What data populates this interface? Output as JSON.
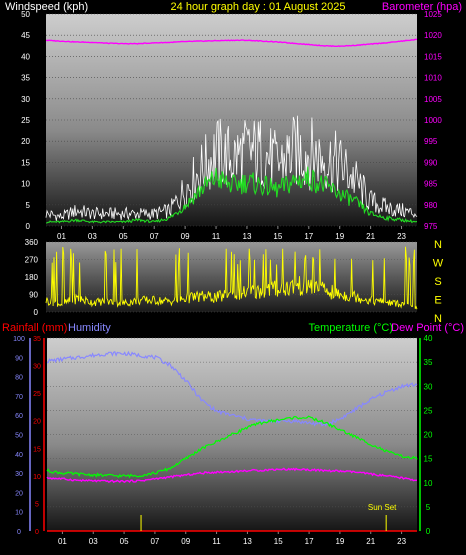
{
  "colors": {
    "background": "#000000",
    "tick_text": "#ffffff",
    "windspeed_label": "#ffffff",
    "title": "#ffff00",
    "barometer": "#ff00ff",
    "gust": "#ffffff",
    "average_wind": "#22dd22",
    "direction": "#ffff00",
    "rainfall": "#ff0000",
    "humidity": "#8888ff",
    "temperature": "#00ff00",
    "dewpoint": "#ff00ff",
    "sunset": "#ffff00"
  },
  "header": {
    "windspeed_label": "Windspeed (kph)",
    "title": "24 hour graph day : 01 August 2025",
    "barometer_label": "Barometer (hpa)"
  },
  "legend2": {
    "rainfall": "Rainfall (mm)",
    "humidity": "Humidity",
    "temperature": "Temperature (°C)",
    "dewpoint": "Dew Point (°C)"
  },
  "compass_labels": [
    "N",
    "W",
    "S",
    "E",
    "N"
  ],
  "sunset_label": "Sun Set",
  "sunset_hour": 22,
  "sunrise_hour": 6.1,
  "chart_data": [
    {
      "type": "line",
      "title": "24 hour graph day : 01 August 2025",
      "x_ticks": [
        "01",
        "03",
        "05",
        "07",
        "09",
        "11",
        "13",
        "15",
        "17",
        "19",
        "21",
        "23"
      ],
      "xlim": [
        0,
        24
      ],
      "y_left": {
        "label": "Windspeed (kph)",
        "ylim": [
          0,
          50
        ],
        "ticks": [
          "0",
          "5",
          "10",
          "15",
          "20",
          "25",
          "30",
          "35",
          "40",
          "45",
          "50"
        ]
      },
      "y_right": {
        "label": "Barometer (hpa)",
        "ylim": [
          975,
          1025
        ],
        "ticks": [
          "975",
          "980",
          "985",
          "990",
          "995",
          "1000",
          "1005",
          "1010",
          "1015",
          "1020",
          "1025"
        ]
      },
      "series": [
        {
          "name": "Barometer (hpa)",
          "axis": "right",
          "x": [
            0,
            1,
            2,
            3,
            4,
            5,
            6,
            7,
            8,
            9,
            10,
            11,
            12,
            13,
            14,
            15,
            16,
            17,
            18,
            19,
            20,
            21,
            22,
            23,
            24
          ],
          "values": [
            1018.8,
            1018.6,
            1018.4,
            1018.3,
            1018.1,
            1018,
            1018,
            1018.2,
            1018.3,
            1018.5,
            1018.6,
            1018.7,
            1018.8,
            1018.8,
            1018.6,
            1018.4,
            1018.1,
            1017.8,
            1017.5,
            1017.4,
            1017.6,
            1017.9,
            1018.2,
            1018.6,
            1019
          ]
        },
        {
          "name": "Gust",
          "axis": "left",
          "x": [
            0,
            1,
            2,
            3,
            4,
            5,
            6,
            7,
            8,
            9,
            10,
            11,
            12,
            13,
            14,
            15,
            16,
            17,
            18,
            19,
            20,
            21,
            22,
            23,
            24
          ],
          "values": [
            4,
            3,
            5,
            4,
            4,
            4,
            4,
            4,
            5,
            12,
            18,
            24,
            22,
            24,
            24,
            20,
            24,
            24,
            22,
            20,
            15,
            8,
            6,
            5,
            4
          ]
        },
        {
          "name": "Average",
          "axis": "left",
          "x": [
            0,
            1,
            2,
            3,
            4,
            5,
            6,
            7,
            8,
            9,
            10,
            11,
            12,
            13,
            14,
            15,
            16,
            17,
            18,
            19,
            20,
            21,
            22,
            23,
            24
          ],
          "values": [
            1,
            1,
            1.5,
            1,
            1,
            1,
            1.5,
            1,
            2,
            5,
            9,
            12,
            10,
            11,
            10,
            9,
            11,
            12,
            10,
            8,
            6,
            3,
            2,
            1.5,
            1
          ]
        }
      ]
    },
    {
      "type": "line",
      "x_ticks": [],
      "xlim": [
        0,
        24
      ],
      "y_left": {
        "ylim": [
          0,
          360
        ],
        "ticks": [
          "0",
          "90",
          "180",
          "270",
          "360"
        ]
      },
      "series": [
        {
          "name": "Wind direction",
          "axis": "left",
          "x": [
            0,
            1,
            2,
            3,
            4,
            5,
            6,
            7,
            8,
            9,
            10,
            11,
            12,
            13,
            14,
            15,
            16,
            17,
            18,
            19,
            20,
            21,
            22,
            23,
            24
          ],
          "values": [
            60,
            40,
            70,
            50,
            55,
            45,
            60,
            60,
            55,
            70,
            80,
            75,
            90,
            100,
            110,
            120,
            130,
            140,
            110,
            90,
            80,
            60,
            50,
            40,
            20
          ]
        }
      ]
    },
    {
      "type": "line",
      "x_ticks": [
        "01",
        "03",
        "05",
        "07",
        "09",
        "11",
        "13",
        "15",
        "17",
        "19",
        "21",
        "23"
      ],
      "xlim": [
        0,
        24
      ],
      "y_left_humidity": {
        "label": "Humidity",
        "ylim": [
          0,
          100
        ],
        "ticks": [
          "0",
          "10",
          "20",
          "30",
          "40",
          "50",
          "60",
          "70",
          "80",
          "90",
          "100"
        ]
      },
      "y_left_rain": {
        "label": "Rainfall (mm)",
        "ylim": [
          0,
          35
        ],
        "ticks": [
          "0",
          "5",
          "10",
          "15",
          "20",
          "25",
          "30",
          "35"
        ]
      },
      "y_right": {
        "label": "Temperature (°C)",
        "ylim": [
          0,
          40
        ],
        "ticks": [
          "0",
          "5",
          "10",
          "15",
          "20",
          "25",
          "30",
          "35",
          "40"
        ]
      },
      "series": [
        {
          "name": "Humidity",
          "axis": "humidity",
          "x": [
            0,
            1,
            2,
            3,
            4,
            5,
            6,
            7,
            8,
            9,
            10,
            11,
            12,
            13,
            14,
            15,
            16,
            17,
            18,
            19,
            20,
            21,
            22,
            23,
            24
          ],
          "values": [
            88,
            89,
            90,
            91,
            92,
            92,
            91,
            90,
            86,
            78,
            68,
            62,
            60,
            58,
            57,
            57,
            57,
            56,
            55,
            58,
            63,
            68,
            72,
            75,
            76
          ]
        },
        {
          "name": "Temperature (°C)",
          "axis": "right",
          "x": [
            0,
            1,
            2,
            3,
            4,
            5,
            6,
            7,
            8,
            9,
            10,
            11,
            12,
            13,
            14,
            15,
            16,
            17,
            18,
            19,
            20,
            21,
            22,
            23,
            24
          ],
          "values": [
            12.5,
            12,
            11.8,
            11.6,
            11.5,
            11.4,
            11.5,
            12,
            13,
            15,
            17,
            18.5,
            20,
            21.5,
            22.5,
            23,
            23.5,
            23.5,
            22.5,
            21,
            19.5,
            18,
            16.5,
            15.5,
            15
          ]
        },
        {
          "name": "Dew Point (°C)",
          "axis": "right",
          "x": [
            0,
            1,
            2,
            3,
            4,
            5,
            6,
            7,
            8,
            9,
            10,
            11,
            12,
            13,
            14,
            15,
            16,
            17,
            18,
            19,
            20,
            21,
            22,
            23,
            24
          ],
          "values": [
            11,
            10.8,
            10.5,
            10.4,
            10.3,
            10.3,
            10.4,
            10.8,
            11.2,
            11.6,
            12,
            12.2,
            12.3,
            12.5,
            12.6,
            12.8,
            12.8,
            12.7,
            12.5,
            12.4,
            12.2,
            11.8,
            11.4,
            11,
            10.5
          ]
        },
        {
          "name": "Rainfall (mm)",
          "axis": "rain",
          "x": [
            0,
            24
          ],
          "values": [
            0,
            0
          ]
        }
      ]
    }
  ]
}
